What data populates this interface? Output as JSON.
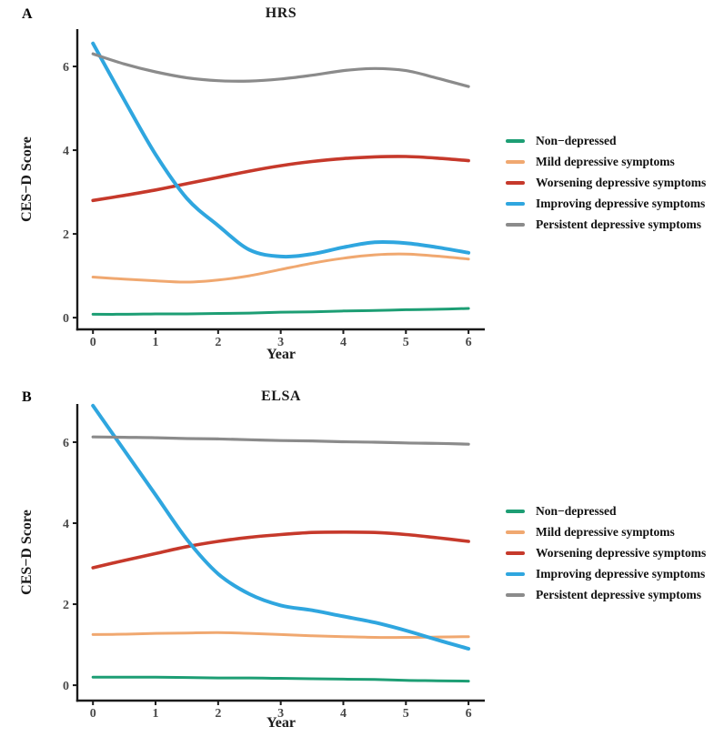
{
  "styles": {
    "background": "#ffffff",
    "axis_color": "#1a1a1a",
    "tick_label_color": "#4a4a4a",
    "series_colors": {
      "non_depressed": "#1D9E74",
      "mild": "#F0A870",
      "worsening": "#C6392B",
      "improving": "#2FA6DF",
      "persistent": "#8B8B8B"
    }
  },
  "chart_data": [
    {
      "type": "line",
      "panel_label": "A",
      "title": "HRS",
      "xlabel": "Year",
      "ylabel": "CES−D Score",
      "x": [
        0,
        0.5,
        1,
        1.5,
        2,
        2.5,
        3,
        3.5,
        4,
        4.5,
        5,
        5.5,
        6
      ],
      "xticks": [
        0,
        1,
        2,
        3,
        4,
        5,
        6
      ],
      "yticks": [
        0,
        2,
        4,
        6
      ],
      "xlim": [
        -0.25,
        6.26
      ],
      "ylim": [
        -0.28,
        6.87
      ],
      "grid": false,
      "legend_position": "right",
      "series": [
        {
          "name": "Non−depressed",
          "color": "#1D9E74",
          "values": [
            0.08,
            0.08,
            0.09,
            0.09,
            0.1,
            0.11,
            0.13,
            0.14,
            0.16,
            0.17,
            0.19,
            0.2,
            0.22
          ]
        },
        {
          "name": "Mild depressive symptoms",
          "color": "#F0A870",
          "values": [
            0.97,
            0.92,
            0.88,
            0.85,
            0.9,
            1.0,
            1.15,
            1.3,
            1.42,
            1.5,
            1.52,
            1.47,
            1.4
          ]
        },
        {
          "name": "Worsening depressive symptoms",
          "color": "#C6392B",
          "values": [
            2.8,
            2.92,
            3.05,
            3.2,
            3.35,
            3.5,
            3.63,
            3.73,
            3.8,
            3.84,
            3.85,
            3.81,
            3.75
          ]
        },
        {
          "name": "Improving depressive symptoms",
          "color": "#2FA6DF",
          "values": [
            6.55,
            5.2,
            3.9,
            2.85,
            2.2,
            1.62,
            1.46,
            1.52,
            1.68,
            1.8,
            1.78,
            1.68,
            1.55
          ]
        },
        {
          "name": "Persistent depressive symptoms",
          "color": "#8B8B8B",
          "values": [
            6.3,
            6.06,
            5.87,
            5.73,
            5.66,
            5.65,
            5.7,
            5.79,
            5.9,
            5.95,
            5.9,
            5.72,
            5.52
          ]
        }
      ]
    },
    {
      "type": "line",
      "panel_label": "B",
      "title": "ELSA",
      "xlabel": "Year",
      "ylabel": "CES−D Score",
      "x": [
        0,
        0.5,
        1,
        1.5,
        2,
        2.5,
        3,
        3.5,
        4,
        4.5,
        5,
        5.5,
        6
      ],
      "xticks": [
        0,
        1,
        2,
        3,
        4,
        5,
        6
      ],
      "yticks": [
        0,
        2,
        4,
        6
      ],
      "xlim": [
        -0.25,
        6.26
      ],
      "ylim": [
        -0.38,
        6.92
      ],
      "grid": false,
      "legend_position": "right",
      "series": [
        {
          "name": "Non−depressed",
          "color": "#1D9E74",
          "values": [
            0.2,
            0.2,
            0.2,
            0.19,
            0.18,
            0.18,
            0.17,
            0.16,
            0.15,
            0.14,
            0.12,
            0.11,
            0.1
          ]
        },
        {
          "name": "Mild depressive symptoms",
          "color": "#F0A870",
          "values": [
            1.25,
            1.26,
            1.28,
            1.29,
            1.3,
            1.28,
            1.25,
            1.22,
            1.2,
            1.18,
            1.18,
            1.19,
            1.2
          ]
        },
        {
          "name": "Worsening depressive symptoms",
          "color": "#C6392B",
          "values": [
            2.9,
            3.08,
            3.25,
            3.42,
            3.55,
            3.65,
            3.72,
            3.77,
            3.78,
            3.77,
            3.72,
            3.64,
            3.55
          ]
        },
        {
          "name": "Improving depressive symptoms",
          "color": "#2FA6DF",
          "values": [
            6.9,
            5.8,
            4.7,
            3.6,
            2.75,
            2.25,
            1.97,
            1.85,
            1.7,
            1.55,
            1.35,
            1.12,
            0.9
          ]
        },
        {
          "name": "Persistent depressive symptoms",
          "color": "#8B8B8B",
          "values": [
            6.13,
            6.12,
            6.11,
            6.09,
            6.08,
            6.06,
            6.04,
            6.03,
            6.01,
            6.0,
            5.98,
            5.97,
            5.95
          ]
        }
      ]
    }
  ]
}
